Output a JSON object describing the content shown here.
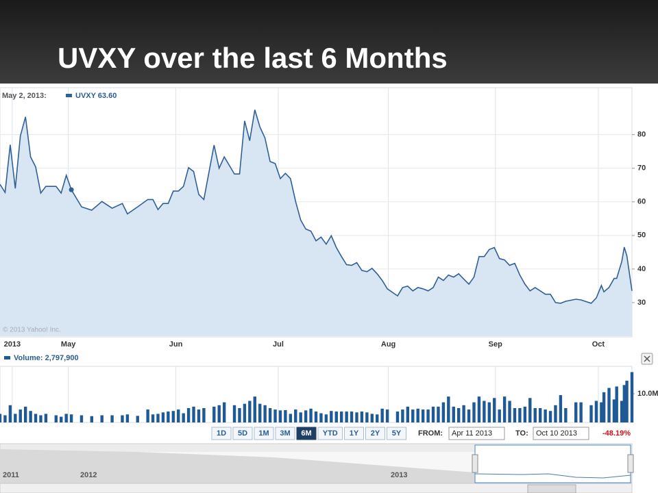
{
  "slide_title": "UVXY over the last 6 Months",
  "chart_data": [
    {
      "type": "line",
      "header_date": "May 2, 2013:",
      "legend_label": "UVXY 63.60",
      "copyright": "© 2013 Yahoo! Inc.",
      "highlight_x": 14,
      "x": [
        0,
        1,
        2,
        3,
        4,
        5,
        6,
        7,
        8,
        9,
        11,
        12,
        13,
        14,
        16,
        18,
        20,
        22,
        24,
        25,
        27,
        29,
        30,
        31,
        32,
        33,
        34,
        35,
        36,
        37,
        38,
        39,
        40,
        42,
        43,
        44,
        46,
        47,
        48,
        49,
        50,
        51,
        52,
        53,
        54,
        55,
        56,
        57,
        58,
        59,
        60,
        61,
        62,
        63,
        64,
        65,
        66,
        67,
        68,
        69,
        70,
        71,
        72,
        73,
        74,
        75,
        76,
        78,
        79,
        80,
        81,
        82,
        83,
        84,
        85,
        86,
        87,
        88,
        89,
        90,
        91,
        92,
        93,
        94,
        95,
        96,
        97,
        98,
        99,
        100,
        101,
        102,
        103,
        104,
        105,
        106,
        107,
        108,
        109,
        110,
        111,
        113,
        114,
        116,
        117,
        118,
        118.5,
        119.5,
        120.5,
        121,
        122,
        122.5,
        123,
        124
      ],
      "series": [
        {
          "color": "#2f5f96",
          "fill": "#d7e6f2",
          "values": [
            65.2,
            62.8,
            77,
            64,
            79.6,
            85.3,
            73.4,
            70.4,
            62.6,
            64.6,
            64.6,
            62.6,
            67.9,
            63.6,
            58.5,
            57.5,
            60.1,
            58.1,
            59.5,
            56.4,
            58.5,
            60.7,
            60.7,
            57.7,
            59.5,
            59.5,
            63.2,
            63.2,
            64.6,
            70.2,
            69,
            62.2,
            60.7,
            76.9,
            70,
            73.4,
            68.3,
            68.3,
            84.1,
            78.2,
            87.4,
            82.3,
            79,
            72,
            71.4,
            66.9,
            68.5,
            66.9,
            60.1,
            54.6,
            51.9,
            51.3,
            48.4,
            49.5,
            47.4,
            49.9,
            46.4,
            43.7,
            41.3,
            41.1,
            41.9,
            39.6,
            39.2,
            40.2,
            38.6,
            36.6,
            34.1,
            32,
            34.5,
            34.9,
            33.5,
            34.5,
            34.1,
            33.5,
            34.5,
            37.6,
            36.6,
            38.2,
            37.6,
            38.6,
            37,
            35.5,
            37.6,
            43.7,
            43.7,
            45.8,
            46.4,
            43.1,
            42.7,
            41.1,
            41.7,
            38.2,
            35.5,
            33.5,
            34.5,
            33.5,
            32.5,
            32.5,
            30,
            29.8,
            30.4,
            31,
            30.8,
            29.8,
            31.4,
            35.1,
            33.2,
            34.5,
            37.2,
            37.2,
            42.2,
            46.5,
            43.9,
            33.5
          ]
        }
      ],
      "xlim": [
        0,
        124
      ],
      "xticks": [
        {
          "value": 2.4,
          "label": "2013"
        },
        {
          "value": 13.4,
          "label": "May"
        },
        {
          "value": 34.5,
          "label": "Jun"
        },
        {
          "value": 54.6,
          "label": "Jul"
        },
        {
          "value": 76.2,
          "label": "Aug"
        },
        {
          "value": 97.2,
          "label": "Sep"
        },
        {
          "value": 117.4,
          "label": "Oct"
        }
      ],
      "ylim": [
        20,
        94
      ],
      "yticks": [
        30,
        40,
        50,
        60,
        70,
        80
      ],
      "grid": true
    },
    {
      "type": "bar",
      "legend_label": "Volume: 2,797,900",
      "color": "#1f5a96",
      "values": [
        3,
        2.5,
        6,
        3,
        4.5,
        5.5,
        4,
        3,
        2.5,
        3,
        2.5,
        2,
        3,
        2.8,
        2.5,
        2.2,
        2.5,
        2.5,
        2.5,
        2.8,
        2.3,
        4.5,
        2.8,
        3,
        3.5,
        3.8,
        4,
        4.5,
        3.2,
        5,
        5.5,
        4.5,
        5,
        5.5,
        6,
        7,
        6,
        5,
        6.5,
        7.5,
        9,
        6.5,
        6,
        5,
        4.5,
        4.2,
        4.3,
        3,
        4.5,
        3.5,
        4.2,
        4.8,
        3.8,
        3.2,
        2.8,
        4,
        3.8,
        3.8,
        3.8,
        3.8,
        3.5,
        3.8,
        3.5,
        3,
        2.8,
        4.8,
        4.5,
        3.8,
        4.5,
        5.5,
        4.5,
        4.8,
        4.5,
        4.5,
        5.5,
        5.5,
        7,
        9,
        5.5,
        5,
        6,
        4.5,
        7,
        9,
        7.5,
        7,
        8.5,
        4.5,
        9,
        7.5,
        5,
        5,
        5.5,
        8.5,
        5,
        5,
        4.5,
        4,
        6,
        9.5,
        5,
        7,
        7,
        6,
        7.5,
        7,
        10.5,
        12,
        8,
        12.5,
        7.5,
        13,
        14.5,
        17.5
      ],
      "ylim": [
        0,
        19.5
      ],
      "yticks": [
        {
          "value": 10,
          "label": "10.0M"
        }
      ],
      "grid": true
    }
  ],
  "controls": {
    "range_buttons": [
      "1D",
      "5D",
      "1M",
      "3M",
      "6M",
      "YTD",
      "1Y",
      "2Y",
      "5Y"
    ],
    "selected": "6M",
    "from_label": "FROM:",
    "from": "Apr 11 2013",
    "to_label": "TO:",
    "to": "Oct 10 2013",
    "change": "-48.19%",
    "navigator_labels": [
      "2011",
      "2012",
      "2013"
    ]
  }
}
